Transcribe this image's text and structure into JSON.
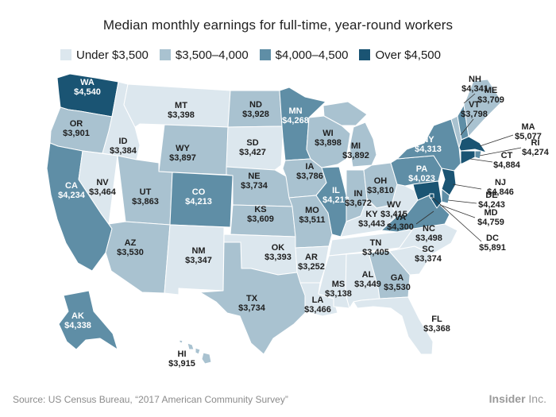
{
  "title": "Median monthly earnings for full-time, year-round workers",
  "colors": {
    "under_3500": "#dce7ee",
    "3500_4000": "#a9c2d0",
    "4000_4500": "#5f8ea6",
    "over_4500": "#1a5473",
    "state_border": "#ffffff"
  },
  "legend": [
    {
      "label": "Under $3,500",
      "color": "#dce7ee"
    },
    {
      "label": "$3,500–4,000",
      "color": "#a9c2d0"
    },
    {
      "label": "$4,000–4,500",
      "color": "#5f8ea6"
    },
    {
      "label": "Over $4,500",
      "color": "#1a5473"
    }
  ],
  "states": [
    {
      "abbr": "WA",
      "value": "$4,540",
      "tier": "over_4500"
    },
    {
      "abbr": "OR",
      "value": "$3,901",
      "tier": "3500_4000"
    },
    {
      "abbr": "CA",
      "value": "$4,234",
      "tier": "4000_4500"
    },
    {
      "abbr": "NV",
      "value": "$3,464",
      "tier": "under_3500"
    },
    {
      "abbr": "ID",
      "value": "$3,384",
      "tier": "under_3500"
    },
    {
      "abbr": "MT",
      "value": "$3,398",
      "tier": "under_3500"
    },
    {
      "abbr": "WY",
      "value": "$3,897",
      "tier": "3500_4000"
    },
    {
      "abbr": "UT",
      "value": "$3,863",
      "tier": "3500_4000"
    },
    {
      "abbr": "AZ",
      "value": "$3,530",
      "tier": "3500_4000"
    },
    {
      "abbr": "CO",
      "value": "$4,213",
      "tier": "4000_4500"
    },
    {
      "abbr": "NM",
      "value": "$3,347",
      "tier": "under_3500"
    },
    {
      "abbr": "ND",
      "value": "$3,928",
      "tier": "3500_4000"
    },
    {
      "abbr": "SD",
      "value": "$3,427",
      "tier": "under_3500"
    },
    {
      "abbr": "NE",
      "value": "$3,734",
      "tier": "3500_4000"
    },
    {
      "abbr": "KS",
      "value": "$3,609",
      "tier": "3500_4000"
    },
    {
      "abbr": "OK",
      "value": "$3,393",
      "tier": "under_3500"
    },
    {
      "abbr": "TX",
      "value": "$3,734",
      "tier": "3500_4000"
    },
    {
      "abbr": "MN",
      "value": "$4,268",
      "tier": "4000_4500"
    },
    {
      "abbr": "IA",
      "value": "$3,786",
      "tier": "3500_4000"
    },
    {
      "abbr": "MO",
      "value": "$3,511",
      "tier": "3500_4000"
    },
    {
      "abbr": "AR",
      "value": "$3,252",
      "tier": "under_3500"
    },
    {
      "abbr": "LA",
      "value": "$3,466",
      "tier": "under_3500"
    },
    {
      "abbr": "WI",
      "value": "$3,898",
      "tier": "3500_4000"
    },
    {
      "abbr": "IL",
      "value": "$4,213",
      "tier": "4000_4500"
    },
    {
      "abbr": "MI",
      "value": "$3,892",
      "tier": "3500_4000"
    },
    {
      "abbr": "IN",
      "value": "$3,672",
      "tier": "3500_4000"
    },
    {
      "abbr": "OH",
      "value": "$3,810",
      "tier": "3500_4000"
    },
    {
      "abbr": "KY",
      "value": "$3,443",
      "tier": "under_3500"
    },
    {
      "abbr": "TN",
      "value": "$3,405",
      "tier": "under_3500"
    },
    {
      "abbr": "MS",
      "value": "$3,138",
      "tier": "under_3500"
    },
    {
      "abbr": "AL",
      "value": "$3,449",
      "tier": "under_3500"
    },
    {
      "abbr": "GA",
      "value": "$3,530",
      "tier": "3500_4000"
    },
    {
      "abbr": "FL",
      "value": "$3,368",
      "tier": "under_3500"
    },
    {
      "abbr": "SC",
      "value": "$3,374",
      "tier": "under_3500"
    },
    {
      "abbr": "NC",
      "value": "$3,498",
      "tier": "under_3500"
    },
    {
      "abbr": "WV",
      "value": "$3,415",
      "tier": "under_3500"
    },
    {
      "abbr": "VA",
      "value": "$4,300",
      "tier": "4000_4500"
    },
    {
      "abbr": "PA",
      "value": "$4,023",
      "tier": "4000_4500"
    },
    {
      "abbr": "NY",
      "value": "$4,313",
      "tier": "4000_4500"
    },
    {
      "abbr": "VT",
      "value": "$3,798",
      "tier": "3500_4000"
    },
    {
      "abbr": "NH",
      "value": "$4,341",
      "tier": "4000_4500"
    },
    {
      "abbr": "ME",
      "value": "$3,709",
      "tier": "3500_4000"
    },
    {
      "abbr": "MA",
      "value": "$5,077",
      "tier": "over_4500"
    },
    {
      "abbr": "RI",
      "value": "$4,274",
      "tier": "4000_4500"
    },
    {
      "abbr": "CT",
      "value": "$4,884",
      "tier": "over_4500"
    },
    {
      "abbr": "NJ",
      "value": "$4,846",
      "tier": "over_4500"
    },
    {
      "abbr": "DE",
      "value": "$4,243",
      "tier": "4000_4500"
    },
    {
      "abbr": "MD",
      "value": "$4,759",
      "tier": "over_4500"
    },
    {
      "abbr": "DC",
      "value": "$5,891",
      "tier": "over_4500"
    },
    {
      "abbr": "AK",
      "value": "$4,338",
      "tier": "4000_4500"
    },
    {
      "abbr": "HI",
      "value": "$3,915",
      "tier": "3500_4000"
    }
  ],
  "footer": {
    "source": "Source: US Census Bureau, “2017 American Community Survey”",
    "brand_bold": "Insider",
    "brand_rest": " Inc."
  }
}
